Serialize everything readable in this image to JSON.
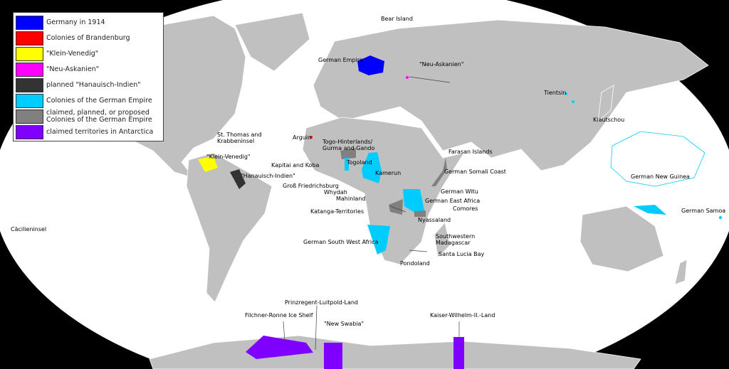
{
  "legend": [
    {
      "label": "Germany in 1914",
      "color": "#0000ff"
    },
    {
      "label": "Colonies of Brandenburg",
      "color": "#ff0000"
    },
    {
      "label": "\"Klein-Venedig\"",
      "color": "#ffff00"
    },
    {
      "label": "\"Neu-Askanien\"",
      "color": "#ff00ff"
    },
    {
      "label": "planned \"Hanauisch-Indien\"",
      "color": "#333333"
    },
    {
      "label": "Colonies of the German Empire",
      "color": "#00ccff"
    },
    {
      "label": "claimed, planned, or proposed Colonies of the German Empire",
      "color": "#808080"
    },
    {
      "label": "claimed territories in Antarctica",
      "color": "#7f00ff"
    }
  ],
  "labels": {
    "bear_island": "Bear Island",
    "german_empire": "German Empire",
    "neu_askanien": "\"Neu-Askanien\"",
    "tientsin": "Tientsin",
    "kiautschou": "Kiautschou",
    "st_thomas": "St. Thomas and Krabbeninsel",
    "arguin": "Arguin",
    "togo_hinterland": "Togo-Hinterlands/ Gurma and Gando",
    "farasan": "Farasan Islands",
    "klein_venedig": "\"Klein-Venedig\"",
    "kapitai": "Kapitai and Koba",
    "togoland": "Togoland",
    "kamerun": "Kamerun",
    "somali": "German Somali Coast",
    "hanauisch": "\"Hanauisch-Indien\"",
    "gross_f": "Groß Friedrichsburg",
    "whydah": "Whydah",
    "mahinland": "Mahinland",
    "witu": "German Witu",
    "gea": "German East Africa",
    "katanga": "Katanga-Territories",
    "comores": "Comores",
    "nyassaland": "Nyassaland",
    "new_guinea": "German New Guinea",
    "samoa": "German Samoa",
    "caecilien": "Cäcilieninsel",
    "gswa": "German South West Africa",
    "sw_madagascar": "Southwestern Madagascar",
    "santa_lucia": "Santa Lucia Bay",
    "pondoland": "Pondoland",
    "prinzregent": "Prinzregent-Luitpold-Land",
    "filchner": "Filchner-Ronne Ice Shelf",
    "new_swabia": "\"New Swabia\"",
    "kaiser_wilhelm": "Kaiser-Wilhelm-II.-Land"
  },
  "colors": {
    "ocean": "#ffffff",
    "land": "#c0c0c0",
    "background": "#000000"
  }
}
